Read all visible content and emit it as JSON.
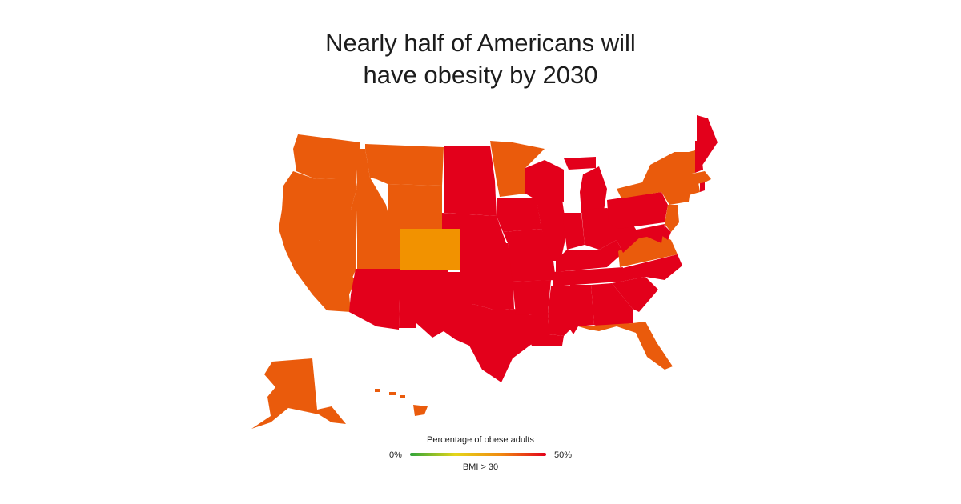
{
  "title": {
    "line1": "Nearly half of Americans will",
    "line2": "have obesity by 2030"
  },
  "legend": {
    "title": "Percentage of obese adults",
    "min_label": "0%",
    "max_label": "50%",
    "note": "BMI > 30",
    "scale_colors": [
      "#2fa43a",
      "#e5d61a",
      "#f08a10",
      "#e3001b"
    ]
  },
  "colors": {
    "level_high": "#e3001b",
    "level_mid": "#ea5b0c",
    "level_low": "#f29200"
  },
  "states": [
    {
      "name": "Washington",
      "level": "mid"
    },
    {
      "name": "Oregon",
      "level": "mid"
    },
    {
      "name": "California",
      "level": "mid"
    },
    {
      "name": "Nevada",
      "level": "mid"
    },
    {
      "name": "Idaho",
      "level": "mid"
    },
    {
      "name": "Montana",
      "level": "mid"
    },
    {
      "name": "Wyoming",
      "level": "mid"
    },
    {
      "name": "Utah",
      "level": "mid"
    },
    {
      "name": "Arizona",
      "level": "high"
    },
    {
      "name": "Colorado",
      "level": "low"
    },
    {
      "name": "New Mexico",
      "level": "high"
    },
    {
      "name": "North Dakota",
      "level": "high"
    },
    {
      "name": "South Dakota",
      "level": "high"
    },
    {
      "name": "Nebraska",
      "level": "high"
    },
    {
      "name": "Kansas",
      "level": "high"
    },
    {
      "name": "Oklahoma",
      "level": "high"
    },
    {
      "name": "Texas",
      "level": "high"
    },
    {
      "name": "Minnesota",
      "level": "mid"
    },
    {
      "name": "Iowa",
      "level": "high"
    },
    {
      "name": "Missouri",
      "level": "high"
    },
    {
      "name": "Arkansas",
      "level": "high"
    },
    {
      "name": "Louisiana",
      "level": "high"
    },
    {
      "name": "Wisconsin",
      "level": "high"
    },
    {
      "name": "Illinois",
      "level": "high"
    },
    {
      "name": "Michigan",
      "level": "high"
    },
    {
      "name": "Indiana",
      "level": "high"
    },
    {
      "name": "Ohio",
      "level": "high"
    },
    {
      "name": "Kentucky",
      "level": "high"
    },
    {
      "name": "Tennessee",
      "level": "high"
    },
    {
      "name": "Mississippi",
      "level": "high"
    },
    {
      "name": "Alabama",
      "level": "high"
    },
    {
      "name": "Georgia",
      "level": "high"
    },
    {
      "name": "Florida",
      "level": "mid"
    },
    {
      "name": "South Carolina",
      "level": "high"
    },
    {
      "name": "North Carolina",
      "level": "high"
    },
    {
      "name": "Virginia",
      "level": "mid"
    },
    {
      "name": "West Virginia",
      "level": "high"
    },
    {
      "name": "Pennsylvania",
      "level": "high"
    },
    {
      "name": "New York",
      "level": "mid"
    },
    {
      "name": "New Jersey",
      "level": "mid"
    },
    {
      "name": "Delaware",
      "level": "high"
    },
    {
      "name": "Maryland",
      "level": "high"
    },
    {
      "name": "Connecticut",
      "level": "mid"
    },
    {
      "name": "Rhode Island",
      "level": "high"
    },
    {
      "name": "Massachusetts",
      "level": "mid"
    },
    {
      "name": "Vermont",
      "level": "mid"
    },
    {
      "name": "New Hampshire",
      "level": "high"
    },
    {
      "name": "Maine",
      "level": "high"
    },
    {
      "name": "Alaska",
      "level": "mid"
    },
    {
      "name": "Hawaii",
      "level": "mid"
    }
  ]
}
